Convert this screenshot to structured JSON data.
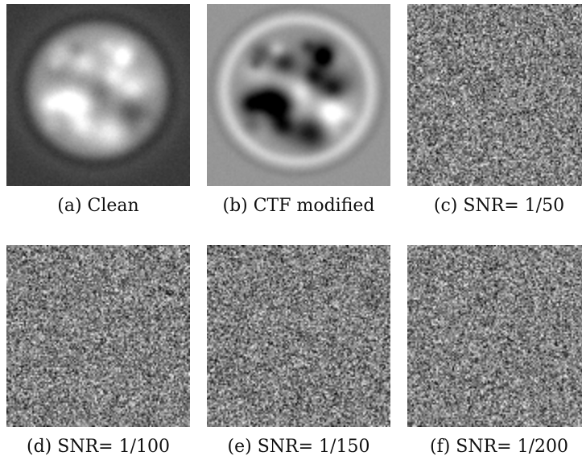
{
  "figure": {
    "panels": [
      {
        "caption": "(a) Clean",
        "kind": "clean"
      },
      {
        "caption": "(b) CTF modified",
        "kind": "ctf"
      },
      {
        "caption": "(c) SNR= 1/50",
        "kind": "noise",
        "snr": 0.02
      },
      {
        "caption": "(d) SNR= 1/100",
        "kind": "noise",
        "snr": 0.01
      },
      {
        "caption": "(e) SNR= 1/150",
        "kind": "noise",
        "snr": 0.00667
      },
      {
        "caption": "(f) SNR= 1/200",
        "kind": "noise",
        "snr": 0.005
      }
    ]
  }
}
